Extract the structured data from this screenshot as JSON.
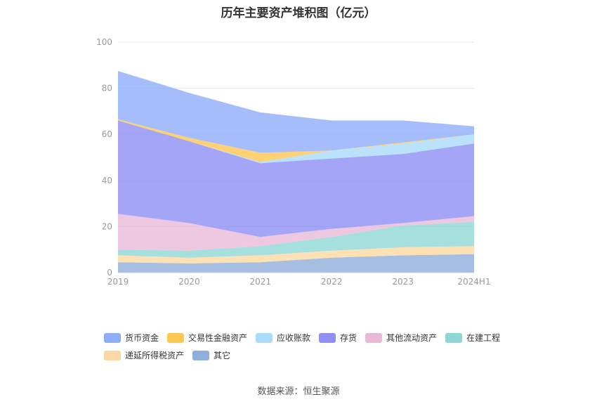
{
  "title": "历年主要资产堆积图（亿元）",
  "source": "数据来源：恒生聚源",
  "chart_data": {
    "type": "area",
    "stacked": true,
    "categories": [
      "2019",
      "2020",
      "2021",
      "2022",
      "2023",
      "2024H1"
    ],
    "ylim": [
      0,
      100
    ],
    "yticks": [
      0,
      20,
      40,
      60,
      80,
      100
    ],
    "grid": true,
    "legend_position": "bottom",
    "series": [
      {
        "name": "其它",
        "color": "#8eaedb",
        "values": [
          4.5,
          4.0,
          4.5,
          6.5,
          7.5,
          8.0
        ]
      },
      {
        "name": "递延所得税资产",
        "color": "#fcd9a2",
        "values": [
          3.0,
          2.5,
          3.0,
          3.0,
          3.5,
          3.5
        ]
      },
      {
        "name": "在建工程",
        "color": "#8ed7d6",
        "values": [
          2.5,
          3.0,
          4.0,
          6.0,
          9.5,
          10.5
        ]
      },
      {
        "name": "其他流动资产",
        "color": "#eab9d8",
        "values": [
          15.5,
          12.0,
          4.0,
          3.5,
          1.0,
          2.5
        ]
      },
      {
        "name": "存货",
        "color": "#8f8ff5",
        "values": [
          40.5,
          35.5,
          32.0,
          30.5,
          30.0,
          31.5
        ]
      },
      {
        "name": "应收账款",
        "color": "#a9dcfa",
        "values": [
          0.0,
          0.0,
          0.5,
          3.5,
          4.5,
          4.0
        ]
      },
      {
        "name": "交易性金融资产",
        "color": "#fdc651",
        "values": [
          0.5,
          1.5,
          4.0,
          0.0,
          0.5,
          0.0
        ]
      },
      {
        "name": "货币资金",
        "color": "#8faefa",
        "values": [
          21.0,
          19.5,
          17.5,
          13.0,
          9.5,
          3.5
        ]
      }
    ],
    "legend_order": [
      "货币资金",
      "交易性金融资产",
      "应收账款",
      "存货",
      "其他流动资产",
      "在建工程",
      "递延所得税资产",
      "其它"
    ]
  }
}
